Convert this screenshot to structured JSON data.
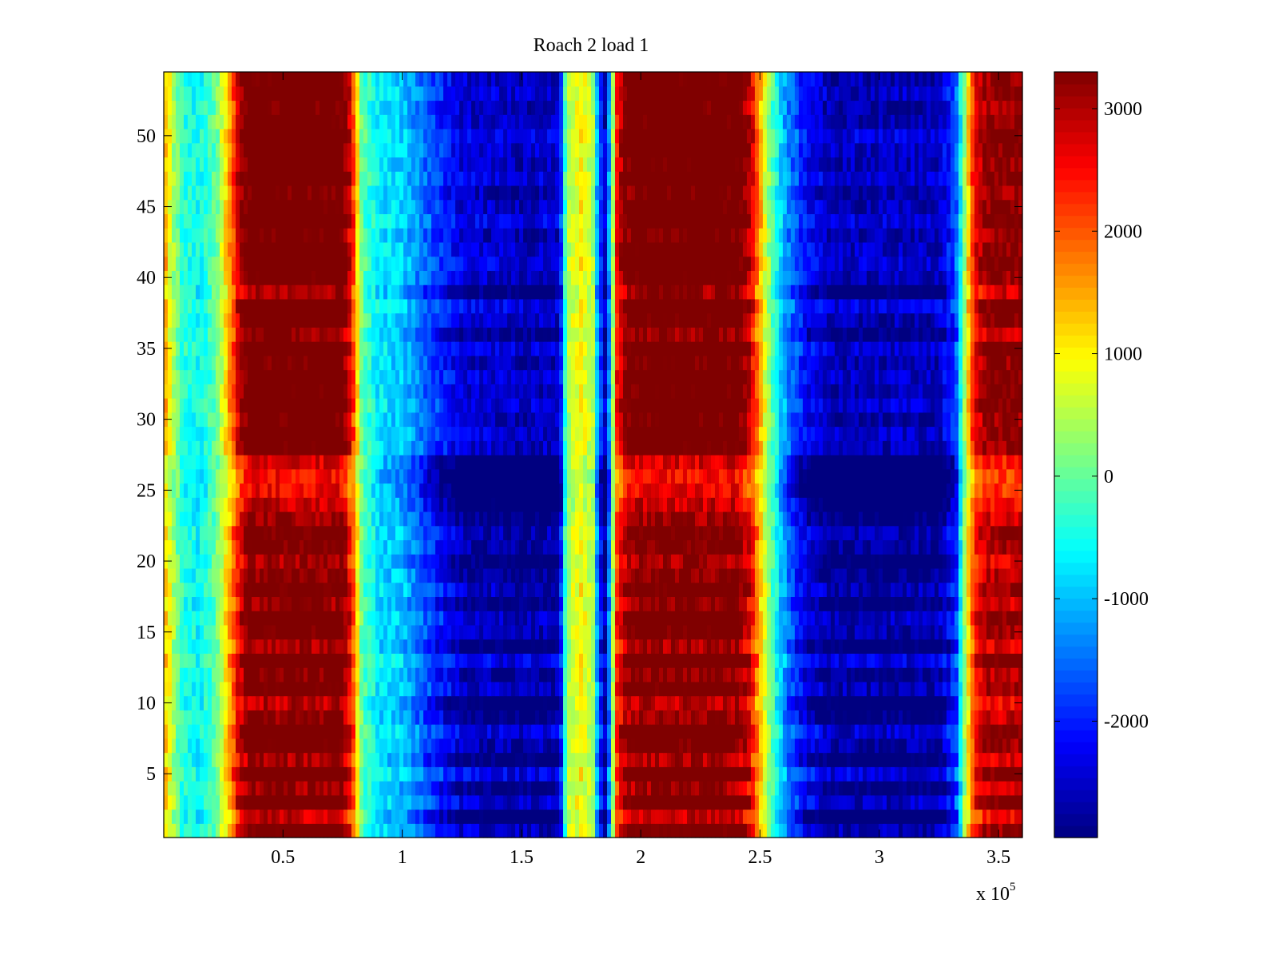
{
  "chart_data": {
    "type": "heatmap",
    "title": "Roach 2 load 1",
    "xlabel": "",
    "ylabel": "",
    "x_multiplier_label": "x 10",
    "x_multiplier_exponent": "5",
    "xlim": [
      0,
      3.6
    ],
    "ylim": [
      0.5,
      54.5
    ],
    "x_ticks": [
      {
        "value": 0.5,
        "label": "0.5"
      },
      {
        "value": 1,
        "label": "1"
      },
      {
        "value": 1.5,
        "label": "1.5"
      },
      {
        "value": 2,
        "label": "2"
      },
      {
        "value": 2.5,
        "label": "2.5"
      },
      {
        "value": 3,
        "label": "3"
      },
      {
        "value": 3.5,
        "label": "3.5"
      }
    ],
    "y_ticks": [
      {
        "value": 5,
        "label": "5"
      },
      {
        "value": 10,
        "label": "10"
      },
      {
        "value": 15,
        "label": "15"
      },
      {
        "value": 20,
        "label": "20"
      },
      {
        "value": 25,
        "label": "25"
      },
      {
        "value": 30,
        "label": "30"
      },
      {
        "value": 35,
        "label": "35"
      },
      {
        "value": 40,
        "label": "40"
      },
      {
        "value": 45,
        "label": "45"
      },
      {
        "value": 50,
        "label": "50"
      }
    ],
    "colorbar": {
      "colormap": "jet",
      "range": [
        -2950,
        3300
      ],
      "ticks": [
        {
          "value": 3000,
          "label": "3000"
        },
        {
          "value": 2000,
          "label": "2000"
        },
        {
          "value": 1000,
          "label": "1000"
        },
        {
          "value": 0,
          "label": "0"
        },
        {
          "value": -1000,
          "label": "-1000"
        },
        {
          "value": -2000,
          "label": "-2000"
        }
      ]
    },
    "rows": 54,
    "x_profile": [
      [
        0.0,
        1500
      ],
      [
        0.03,
        600
      ],
      [
        0.08,
        -400
      ],
      [
        0.15,
        -650
      ],
      [
        0.22,
        0
      ],
      [
        0.28,
        1500
      ],
      [
        0.32,
        2800
      ],
      [
        0.36,
        3300
      ],
      [
        0.75,
        3300
      ],
      [
        0.79,
        2200
      ],
      [
        0.83,
        0
      ],
      [
        0.9,
        -800
      ],
      [
        1.0,
        -1000
      ],
      [
        1.1,
        -1800
      ],
      [
        1.25,
        -2700
      ],
      [
        1.5,
        -2900
      ],
      [
        1.66,
        -2800
      ],
      [
        1.69,
        400
      ],
      [
        1.75,
        900
      ],
      [
        1.8,
        400
      ],
      [
        1.82,
        -1500
      ],
      [
        1.85,
        -2900
      ],
      [
        1.87,
        -1200
      ],
      [
        1.9,
        2200
      ],
      [
        1.94,
        3100
      ],
      [
        2.0,
        3300
      ],
      [
        2.4,
        3300
      ],
      [
        2.46,
        2600
      ],
      [
        2.52,
        700
      ],
      [
        2.57,
        -600
      ],
      [
        2.62,
        -1600
      ],
      [
        2.7,
        -2500
      ],
      [
        2.8,
        -2900
      ],
      [
        3.25,
        -2900
      ],
      [
        3.32,
        -2000
      ],
      [
        3.36,
        500
      ],
      [
        3.4,
        2300
      ],
      [
        3.45,
        2900
      ],
      [
        3.6,
        3000
      ]
    ],
    "row_offsets": [
      300,
      -500,
      400,
      -200,
      600,
      -300,
      200,
      500,
      -100,
      -400,
      300,
      0,
      600,
      -300,
      200,
      400,
      -200,
      300,
      0,
      -300,
      100,
      200,
      -200,
      -500,
      -800,
      -900,
      -600,
      300,
      400,
      200,
      500,
      300,
      400,
      200,
      500,
      -100,
      300,
      600,
      -200,
      300,
      500,
      400,
      200,
      600,
      300,
      200,
      500,
      300,
      400,
      600,
      300,
      200,
      400,
      300
    ]
  }
}
